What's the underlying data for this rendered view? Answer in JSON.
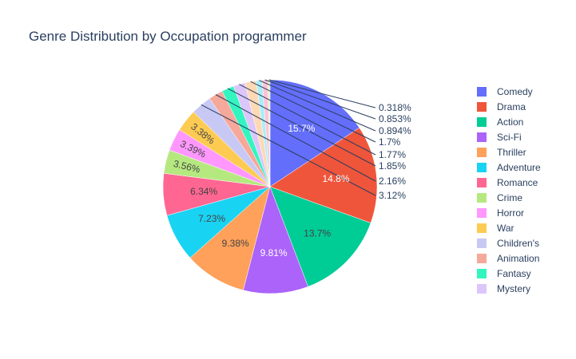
{
  "chart_data": {
    "type": "pie",
    "title": "Genre Distribution by Occupation programmer",
    "legend_position": "right",
    "start_angle_deg": 90,
    "direction": "clockwise",
    "slices": [
      {
        "name": "Comedy",
        "value": 15.7,
        "label": "15.7%",
        "color": "#636efa"
      },
      {
        "name": "Drama",
        "value": 14.8,
        "label": "14.8%",
        "color": "#EF553B"
      },
      {
        "name": "Action",
        "value": 13.7,
        "label": "13.7%",
        "color": "#00cc96"
      },
      {
        "name": "Sci-Fi",
        "value": 9.81,
        "label": "9.81%",
        "color": "#ab63fa"
      },
      {
        "name": "Thriller",
        "value": 9.38,
        "label": "9.38%",
        "color": "#FFA15A"
      },
      {
        "name": "Adventure",
        "value": 7.23,
        "label": "7.23%",
        "color": "#19d3f3"
      },
      {
        "name": "Romance",
        "value": 6.34,
        "label": "6.34%",
        "color": "#FF6692"
      },
      {
        "name": "Crime",
        "value": 3.56,
        "label": "3.56%",
        "color": "#B6E880"
      },
      {
        "name": "Horror",
        "value": 3.39,
        "label": "3.39%",
        "color": "#FF97FF"
      },
      {
        "name": "War",
        "value": 3.38,
        "label": "3.38%",
        "color": "#FECB52"
      },
      {
        "name": "Children's",
        "value": 3.12,
        "label": "3.12%",
        "color": "#c8c8f5"
      },
      {
        "name": "Animation",
        "value": 2.16,
        "label": "2.16%",
        "color": "#f6a89a"
      },
      {
        "name": "Fantasy",
        "value": 1.85,
        "label": "1.85%",
        "color": "#33f5c0"
      },
      {
        "name": "Mystery",
        "value": 1.77,
        "label": "1.77%",
        "color": "#dcc6fa"
      },
      {
        "name": "",
        "value": 1.7,
        "label": "1.7%",
        "color": "#fdd9b5"
      },
      {
        "name": "",
        "value": 0.894,
        "label": "0.894%",
        "color": "#a8eefa"
      },
      {
        "name": "",
        "value": 0.853,
        "label": "0.853%",
        "color": "#ffc2d5"
      },
      {
        "name": "",
        "value": 0.318,
        "label": "0.318%",
        "color": "#e0f4c4"
      }
    ]
  }
}
